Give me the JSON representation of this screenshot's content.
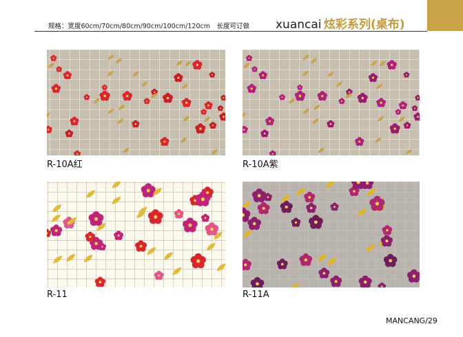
{
  "header": {
    "spec": "规格：宽度60cm/70cm/80cm/90cm/100cm/120cm　长度可订做",
    "brand": "xuancai",
    "series": "炫彩系列(桌布)"
  },
  "products": [
    {
      "code": "R-10A红"
    },
    {
      "code": "R-10A紫"
    },
    {
      "code": "R-11"
    },
    {
      "code": "R-11A"
    }
  ],
  "footer": {
    "page": "MANCANG/29"
  }
}
